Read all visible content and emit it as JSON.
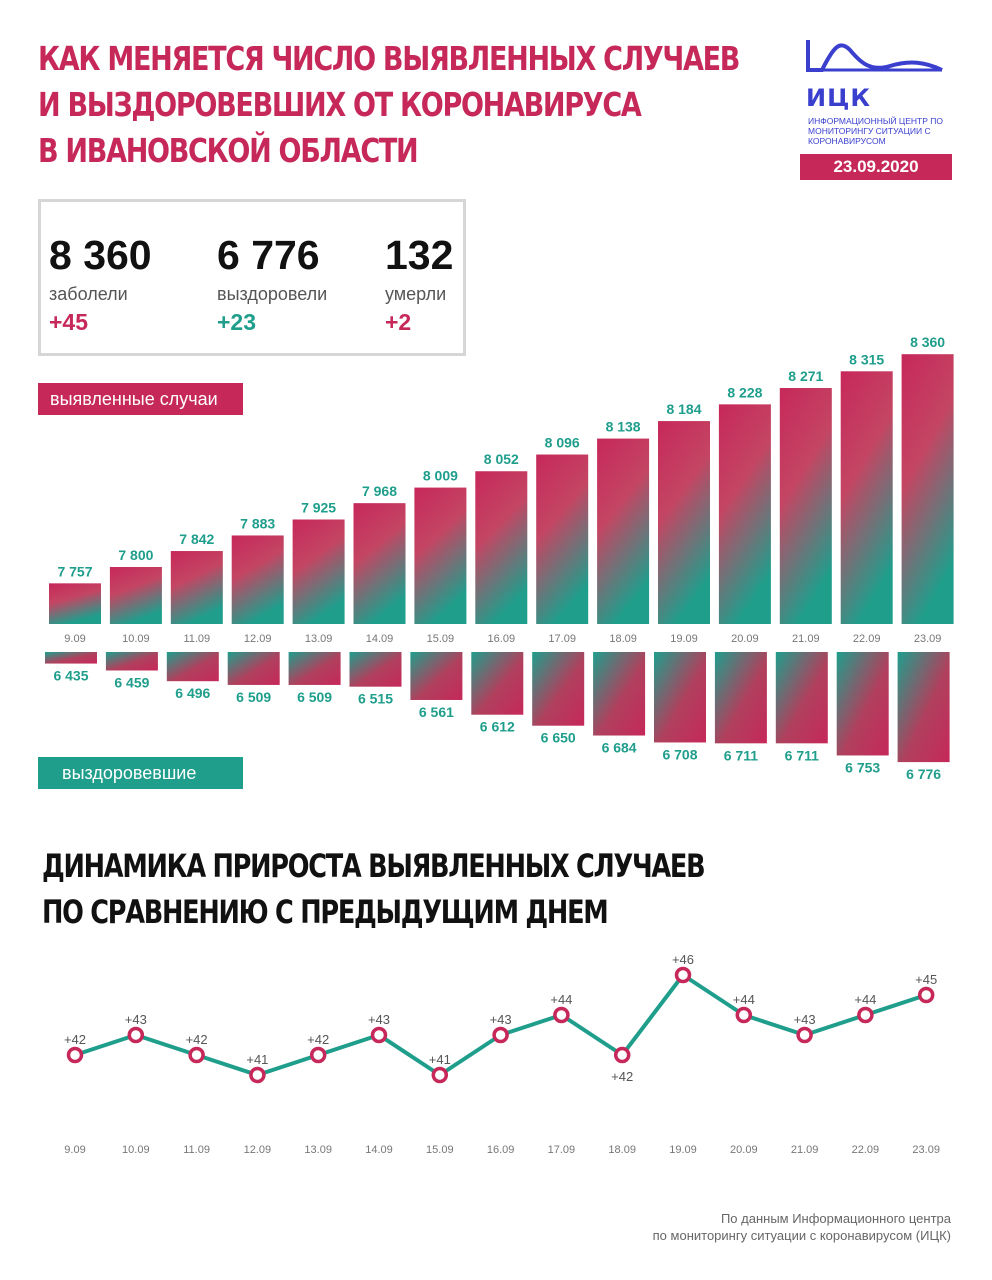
{
  "header": {
    "title_lines": [
      "КАК МЕНЯЕТСЯ ЧИСЛО ВЫЯВЛЕННЫХ СЛУЧАЕВ",
      "И ВЫЗДОРОВЕВШИХ ОТ КОРОНАВИРУСА",
      "В ИВАНОВСКОЙ ОБЛАСТИ"
    ],
    "logo_abbr": "ИЦК",
    "logo_sub": "ИНФОРМАЦИОННЫЙ ЦЕНТР ПО МОНИТОРИНГУ СИТУАЦИИ С КОРОНАВИРУСОМ",
    "date": "23.09.2020"
  },
  "summary": {
    "cases": {
      "value": "8 360",
      "label": "заболели",
      "delta": "+45"
    },
    "recovered": {
      "value": "6 776",
      "label": "выздоровели",
      "delta": "+23"
    },
    "deaths": {
      "value": "132",
      "label": "умерли",
      "delta": "+2"
    }
  },
  "legend": {
    "cases": "выявленные случаи",
    "recovered": "выздоровевшие"
  },
  "colors": {
    "accent_red": "#c6285a",
    "accent_teal": "#1f9e8c",
    "logo_blue": "#3a3fce"
  },
  "section2": {
    "title_lines": [
      "ДИНАМИКА ПРИРОСТА ВЫЯВЛЕННЫХ СЛУЧАЕВ",
      "ПО СРАВНЕНИЮ С ПРЕДЫДУЩИМ ДНЕМ"
    ]
  },
  "source": [
    "По данным Информационного центра",
    "по мониторингу ситуации с коронавирусом (ИЦК)"
  ],
  "chart_data": [
    {
      "type": "bar",
      "categories": [
        "9.09",
        "10.09",
        "11.09",
        "12.09",
        "13.09",
        "14.09",
        "15.09",
        "16.09",
        "17.09",
        "18.09",
        "19.09",
        "20.09",
        "21.09",
        "22.09",
        "23.09"
      ],
      "series": [
        {
          "name": "выявленные случаи",
          "values": [
            7757,
            7800,
            7842,
            7883,
            7925,
            7968,
            8009,
            8052,
            8096,
            8138,
            8184,
            8228,
            8271,
            8315,
            8360
          ],
          "labels": [
            "7 757",
            "7 800",
            "7 842",
            "7 883",
            "7 925",
            "7 968",
            "8 009",
            "8 052",
            "8 096",
            "8 138",
            "8 184",
            "8 228",
            "8 271",
            "8 315",
            "8 360"
          ]
        },
        {
          "name": "выздоровевшие",
          "values": [
            6435,
            6459,
            6496,
            6509,
            6509,
            6515,
            6561,
            6612,
            6650,
            6684,
            6708,
            6711,
            6711,
            6753,
            6776
          ],
          "labels": [
            "6 435",
            "6 459",
            "6 496",
            "6 509",
            "6 509",
            "6 515",
            "6 561",
            "6 612",
            "6 650",
            "6 684",
            "6 708",
            "6 711",
            "6 711",
            "6 753",
            "6 776"
          ]
        }
      ]
    },
    {
      "type": "line",
      "categories": [
        "9.09",
        "10.09",
        "11.09",
        "12.09",
        "13.09",
        "14.09",
        "15.09",
        "16.09",
        "17.09",
        "18.09",
        "19.09",
        "20.09",
        "21.09",
        "22.09",
        "23.09"
      ],
      "values": [
        42,
        43,
        42,
        41,
        42,
        43,
        41,
        43,
        44,
        42,
        46,
        44,
        43,
        44,
        45
      ],
      "labels": [
        "+42",
        "+43",
        "+42",
        "+41",
        "+42",
        "+43",
        "+41",
        "+43",
        "+44",
        "+42",
        "+46",
        "+44",
        "+43",
        "+44",
        "+45"
      ]
    }
  ]
}
